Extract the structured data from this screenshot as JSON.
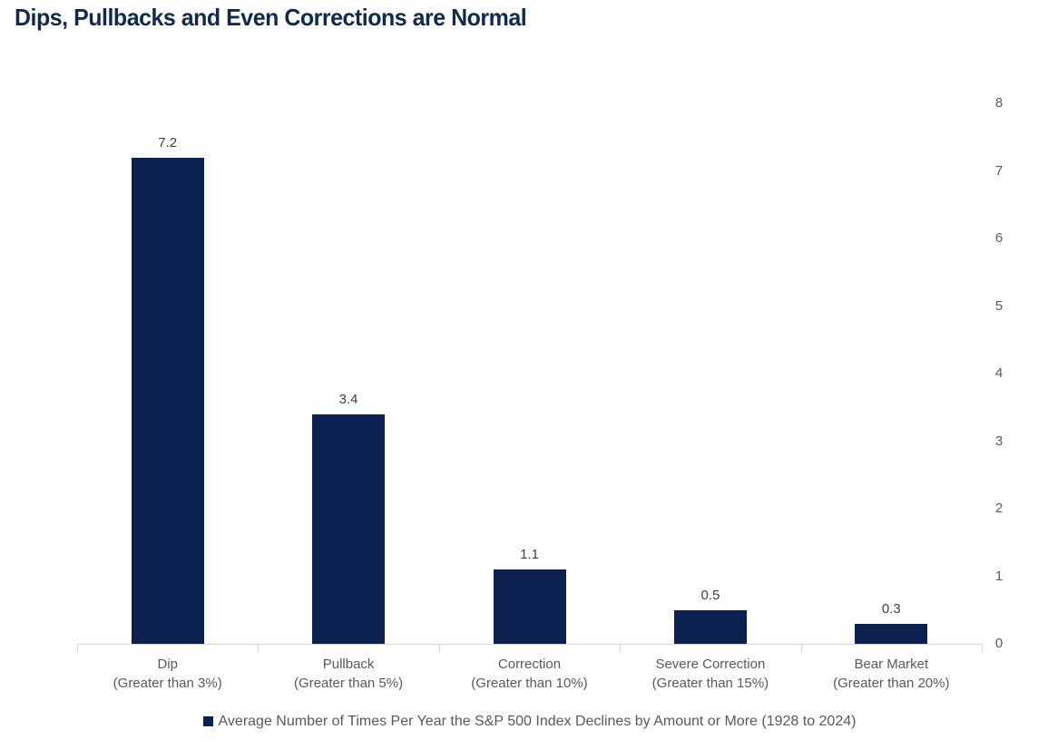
{
  "title": "Dips, Pullbacks and Even Corrections are Normal",
  "colors": {
    "background": "#FFFFFF",
    "title_text": "#12294F",
    "bar": "#0D2150",
    "axis_line": "#D6D6D6",
    "axis_tick_label": "#595959",
    "value_label": "#404040",
    "legend_text": "#595959"
  },
  "chart_data": {
    "type": "bar",
    "title": "Dips, Pullbacks and Even Corrections are Normal",
    "categories": [
      [
        "Dip",
        "(Greater than 3%)"
      ],
      [
        "Pullback",
        "(Greater than 5%)"
      ],
      [
        "Correction",
        "(Greater than 10%)"
      ],
      [
        "Severe Correction",
        "(Greater than 15%)"
      ],
      [
        "Bear Market",
        "(Greater than 20%)"
      ]
    ],
    "values": [
      7.2,
      3.4,
      1.1,
      0.5,
      0.3
    ],
    "value_labels": [
      "7.2",
      "3.4",
      "1.1",
      "0.5",
      "0.3"
    ],
    "xlabel": "",
    "ylabel": "",
    "ylim": [
      0,
      8
    ],
    "yticks": [
      "0",
      "1",
      "2",
      "3",
      "4",
      "5",
      "6",
      "7",
      "8"
    ],
    "yaxis_side": "right",
    "grid": false,
    "bar_color": "#0D2150",
    "legend": {
      "marker": "square-icon",
      "marker_color": "#0D2150",
      "label": "Average Number of Times Per Year the S&P 500 Index Declines by Amount or More (1928 to 2024)",
      "position": "bottom"
    }
  }
}
